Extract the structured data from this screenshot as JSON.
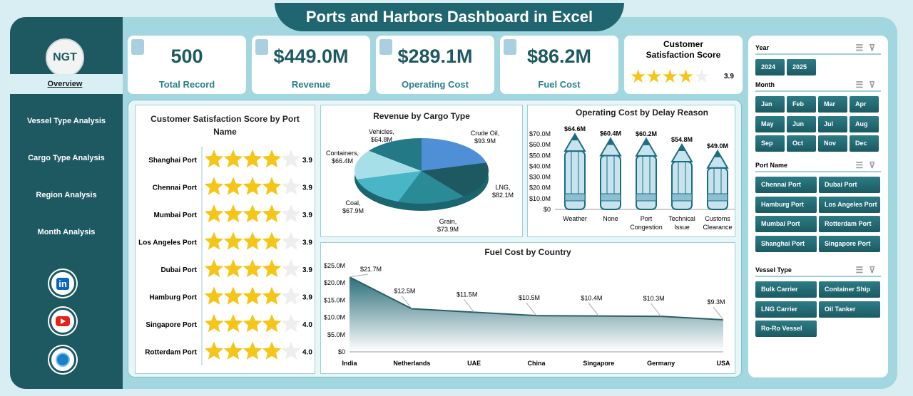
{
  "title": "Ports and Harbors Dashboard in Excel",
  "logo": "NGT",
  "nav": [
    "Overview",
    "Vessel Type Analysis",
    "Cargo Type Analysis",
    "Region Analysis",
    "Month Analysis"
  ],
  "social": [
    "linkedin-icon",
    "youtube-icon",
    "globe-icon"
  ],
  "kpis": [
    {
      "value": "500",
      "label": "Total Record"
    },
    {
      "value": "$449.0M",
      "label": "Revenue"
    },
    {
      "value": "$289.1M",
      "label": "Operating Cost"
    },
    {
      "value": "$86.2M",
      "label": "Fuel Cost"
    }
  ],
  "csat": {
    "label": "Customer Satisfaction Score",
    "value": "3.9",
    "rating": 3.9
  },
  "colors": {
    "accent": "#1e5962",
    "star": "#f5c518"
  },
  "slicers": {
    "year": {
      "title": "Year",
      "items": [
        "2024",
        "2025"
      ]
    },
    "month": {
      "title": "Month",
      "items": [
        "Jan",
        "Feb",
        "Mar",
        "Apr",
        "May",
        "Jun",
        "Jul",
        "Aug",
        "Sep",
        "Oct",
        "Nov",
        "Dec"
      ]
    },
    "port": {
      "title": "Port Name",
      "items": [
        "Chennai Port",
        "Dubai Port",
        "Hamburg Port",
        "Los Angeles Port",
        "Mumbai Port",
        "Rotterdam Port",
        "Shanghai Port",
        "Singapore Port"
      ]
    },
    "vessel": {
      "title": "Vessel Type",
      "items": [
        "Bulk Carrier",
        "Container Ship",
        "LNG Carrier",
        "Oil Tanker",
        "Ro-Ro Vessel"
      ]
    }
  },
  "chart_data": [
    {
      "type": "bar",
      "title": "Customer Satisfaction Score by Port Name",
      "categories": [
        "Shanghai Port",
        "Chennai Port",
        "Mumbai Port",
        "Los Angeles Port",
        "Dubai Port",
        "Hamburg Port",
        "Singapore Port",
        "Rotterdam Port"
      ],
      "values": [
        3.9,
        3.9,
        3.9,
        3.9,
        3.9,
        3.9,
        4.0,
        4.0
      ],
      "labels": [
        "3.9",
        "3.9",
        "3.9",
        "3.9",
        "3.9",
        "3.9",
        "4.0",
        "4.0"
      ],
      "max": 5
    },
    {
      "type": "pie",
      "title": "Revenue by Cargo Type",
      "categories": [
        "Crude Oil",
        "LNG",
        "Grain",
        "Coal",
        "Containers",
        "Vehicles"
      ],
      "values": [
        93.9,
        82.1,
        73.9,
        67.9,
        66.4,
        64.8
      ],
      "labels": [
        "$93.9M",
        "$82.1M",
        "$73.9M",
        "$67.9M",
        "$66.4M",
        "$64.8M"
      ],
      "colors": [
        "#4f8fd6",
        "#1e5962",
        "#2a8a96",
        "#48b6c6",
        "#a6dfe8",
        "#237985"
      ]
    },
    {
      "type": "bar",
      "title": "Operating Cost by Delay Reason",
      "categories": [
        "Weather",
        "None",
        "Port Congestion",
        "Technical Issue",
        "Customs Clearance"
      ],
      "values": [
        64.6,
        60.4,
        60.2,
        54.8,
        49.0
      ],
      "labels": [
        "$64.6M",
        "$60.4M",
        "$60.2M",
        "$54.8M",
        "$49.0M"
      ],
      "yticks": [
        "$0",
        "$10.0M",
        "$20.0M",
        "$30.0M",
        "$40.0M",
        "$50.0M",
        "$60.0M",
        "$70.0M"
      ],
      "ylim": [
        0,
        70
      ]
    },
    {
      "type": "area",
      "title": "Fuel Cost by Country",
      "categories": [
        "India",
        "Netherlands",
        "UAE",
        "China",
        "Singapore",
        "Germany",
        "USA"
      ],
      "values": [
        21.7,
        12.5,
        11.5,
        10.5,
        10.4,
        10.3,
        9.3
      ],
      "labels": [
        "$21.7M",
        "$12.5M",
        "$11.5M",
        "$10.5M",
        "$10.4M",
        "$10.3M",
        "$9.3M"
      ],
      "yticks": [
        "$0",
        "$5.0M",
        "$10.0M",
        "$15.0M",
        "$20.0M",
        "$25.0M"
      ],
      "ylim": [
        0,
        25
      ]
    }
  ]
}
